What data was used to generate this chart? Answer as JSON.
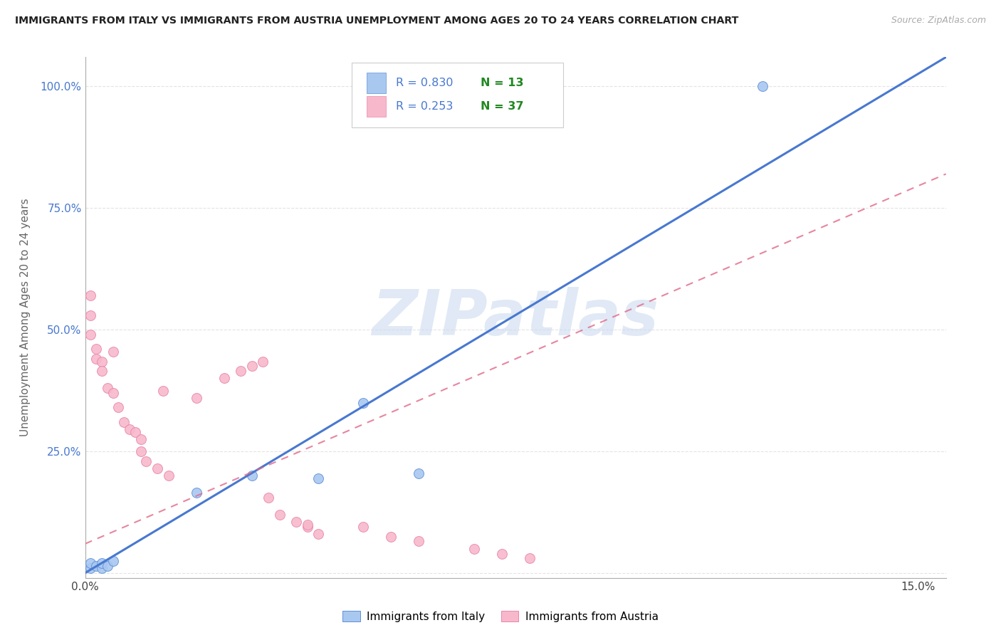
{
  "title": "IMMIGRANTS FROM ITALY VS IMMIGRANTS FROM AUSTRIA UNEMPLOYMENT AMONG AGES 20 TO 24 YEARS CORRELATION CHART",
  "source": "Source: ZipAtlas.com",
  "ylabel": "Unemployment Among Ages 20 to 24 years",
  "xlim": [
    0.0,
    0.155
  ],
  "ylim": [
    -0.01,
    1.06
  ],
  "xtick_positions": [
    0.0,
    0.025,
    0.05,
    0.075,
    0.1,
    0.125,
    0.15
  ],
  "xtick_labels": [
    "0.0%",
    "",
    "",
    "",
    "",
    "",
    "15.0%"
  ],
  "ytick_positions": [
    0.0,
    0.25,
    0.5,
    0.75,
    1.0
  ],
  "ytick_labels": [
    "",
    "25.0%",
    "50.0%",
    "75.0%",
    "100.0%"
  ],
  "italy_color": "#a8c8f0",
  "austria_color": "#f8b8cc",
  "italy_edge_color": "#6090d8",
  "austria_edge_color": "#e888aa",
  "italy_line_color": "#4878d0",
  "austria_line_color": "#e06888",
  "legend_R_N_color": "#4878d0",
  "legend_N_color": "#228822",
  "watermark_color": "#c8d8ee",
  "background_color": "#ffffff",
  "grid_color": "#dddddd",
  "title_color": "#222222",
  "source_color": "#aaaaaa",
  "axis_tick_color": "#4878d0",
  "axis_label_color": "#666666",
  "italy_x": [
    0.001,
    0.001,
    0.002,
    0.003,
    0.003,
    0.004,
    0.005,
    0.02,
    0.03,
    0.042,
    0.05,
    0.06,
    0.122
  ],
  "italy_y": [
    0.01,
    0.02,
    0.015,
    0.01,
    0.02,
    0.015,
    0.025,
    0.165,
    0.2,
    0.195,
    0.35,
    0.205,
    1.0
  ],
  "austria_x": [
    0.001,
    0.001,
    0.001,
    0.002,
    0.002,
    0.003,
    0.003,
    0.004,
    0.005,
    0.005,
    0.006,
    0.007,
    0.008,
    0.009,
    0.01,
    0.01,
    0.011,
    0.013,
    0.014,
    0.015,
    0.02,
    0.025,
    0.028,
    0.03,
    0.032,
    0.033,
    0.035,
    0.038,
    0.04,
    0.04,
    0.042,
    0.05,
    0.055,
    0.06,
    0.07,
    0.075,
    0.08
  ],
  "austria_y": [
    0.57,
    0.53,
    0.49,
    0.46,
    0.44,
    0.435,
    0.415,
    0.38,
    0.455,
    0.37,
    0.34,
    0.31,
    0.295,
    0.29,
    0.275,
    0.25,
    0.23,
    0.215,
    0.375,
    0.2,
    0.36,
    0.4,
    0.415,
    0.425,
    0.435,
    0.155,
    0.12,
    0.105,
    0.095,
    0.1,
    0.08,
    0.095,
    0.075,
    0.065,
    0.05,
    0.04,
    0.03
  ],
  "italy_line_x0": 0.0,
  "italy_line_y0": 0.0,
  "italy_line_x1": 0.155,
  "italy_line_y1": 1.06,
  "austria_line_x0": 0.0,
  "austria_line_y0": 0.06,
  "austria_line_x1": 0.155,
  "austria_line_y1": 0.82,
  "marker_size": 100,
  "bottom_legend_italy": "Immigrants from Italy",
  "bottom_legend_austria": "Immigrants from Austria",
  "legend_italy_R": "0.830",
  "legend_italy_N": "13",
  "legend_austria_R": "0.253",
  "legend_austria_N": "37"
}
